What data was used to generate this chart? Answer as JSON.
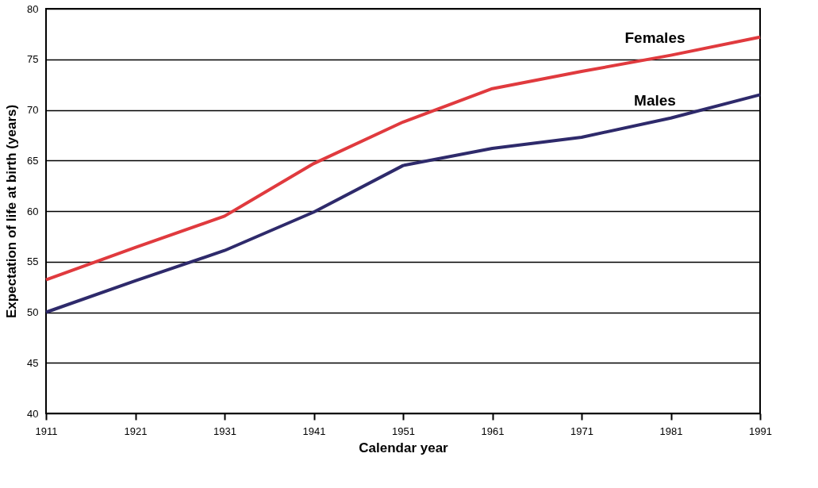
{
  "chart_data": {
    "type": "line",
    "xlabel": "Calendar year",
    "ylabel": "Expectation of life at birth (years)",
    "x": [
      1911,
      1921,
      1931,
      1941,
      1951,
      1961,
      1971,
      1981,
      1991
    ],
    "xlim": [
      1911,
      1991
    ],
    "xticks": [
      1911,
      1921,
      1931,
      1941,
      1951,
      1961,
      1971,
      1981,
      1991
    ],
    "ylim": [
      40,
      80
    ],
    "yticks": [
      40,
      45,
      50,
      55,
      60,
      65,
      70,
      75,
      80
    ],
    "grid": "y",
    "legend": false,
    "marker": "none",
    "line_style": "solid",
    "series": [
      {
        "name": "Females",
        "color": "#e03a3e",
        "values": [
          53.2,
          56.4,
          59.5,
          64.7,
          68.8,
          72.1,
          73.8,
          75.4,
          77.2
        ]
      },
      {
        "name": "Males",
        "color": "#2e2a6b",
        "values": [
          50.0,
          53.1,
          56.1,
          59.9,
          64.5,
          66.2,
          67.3,
          69.2,
          71.5
        ]
      }
    ]
  }
}
